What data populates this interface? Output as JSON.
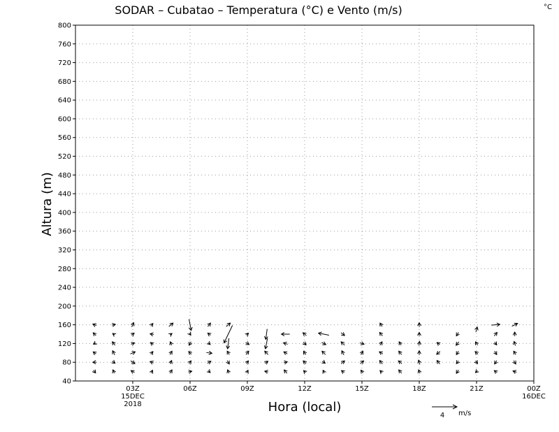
{
  "chart_data": {
    "type": "vector-field",
    "title": "SODAR – Cubatao – Temperatura (°C) e Vento (m/s)",
    "corner_unit": "°C",
    "xlabel": "Hora (local)",
    "ylabel": "Altura (m)",
    "xlim": [
      0,
      24
    ],
    "ylim": [
      40,
      800
    ],
    "y_ticks": [
      40,
      80,
      120,
      160,
      200,
      240,
      280,
      320,
      360,
      400,
      440,
      480,
      520,
      560,
      600,
      640,
      680,
      720,
      760,
      800
    ],
    "x_ticks": [
      {
        "hour": 3,
        "label": "03Z",
        "sub1": "15DEC",
        "sub2": "2018"
      },
      {
        "hour": 6,
        "label": "06Z",
        "sub1": "",
        "sub2": ""
      },
      {
        "hour": 9,
        "label": "09Z",
        "sub1": "",
        "sub2": ""
      },
      {
        "hour": 12,
        "label": "12Z",
        "sub1": "",
        "sub2": ""
      },
      {
        "hour": 15,
        "label": "15Z",
        "sub1": "",
        "sub2": ""
      },
      {
        "hour": 18,
        "label": "18Z",
        "sub1": "",
        "sub2": ""
      },
      {
        "hour": 21,
        "label": "21Z",
        "sub1": "",
        "sub2": ""
      },
      {
        "hour": 24,
        "label": "00Z",
        "sub1": "16DEC",
        "sub2": ""
      }
    ],
    "grid": true,
    "reference_vector": {
      "speed": 4,
      "label": "4",
      "unit": "m/s"
    },
    "wind_vectors": [
      {
        "hour": 1,
        "height": 160,
        "u": -0.5,
        "v": 0.2
      },
      {
        "hour": 1,
        "height": 140,
        "u": -0.4,
        "v": 0.4
      },
      {
        "hour": 1,
        "height": 120,
        "u": -0.3,
        "v": -0.2
      },
      {
        "hour": 1,
        "height": 100,
        "u": -0.4,
        "v": 0.3
      },
      {
        "hour": 1,
        "height": 80,
        "u": -0.5,
        "v": 0.0
      },
      {
        "hour": 1,
        "height": 60,
        "u": 0.3,
        "v": -0.4
      },
      {
        "hour": 2,
        "height": 160,
        "u": 0.5,
        "v": 0.1
      },
      {
        "hour": 2,
        "height": 140,
        "u": -0.3,
        "v": 0.2
      },
      {
        "hour": 2,
        "height": 120,
        "u": -0.4,
        "v": 0.5
      },
      {
        "hour": 2,
        "height": 100,
        "u": -0.3,
        "v": 0.6
      },
      {
        "hour": 2,
        "height": 80,
        "u": 0.4,
        "v": -0.3
      },
      {
        "hour": 2,
        "height": 60,
        "u": -0.2,
        "v": 0.5
      },
      {
        "hour": 3,
        "height": 160,
        "u": 0.3,
        "v": 0.6
      },
      {
        "hour": 3,
        "height": 140,
        "u": 0.4,
        "v": 0.3
      },
      {
        "hour": 3,
        "height": 120,
        "u": 0.5,
        "v": 0.2
      },
      {
        "hour": 3,
        "height": 100,
        "u": 0.7,
        "v": 0.3
      },
      {
        "hour": 3,
        "height": 80,
        "u": 0.6,
        "v": -0.4
      },
      {
        "hour": 3,
        "height": 60,
        "u": -0.5,
        "v": 0.3
      },
      {
        "hour": 4,
        "height": 160,
        "u": 0.3,
        "v": 0.4
      },
      {
        "hour": 4,
        "height": 140,
        "u": -0.5,
        "v": 0.1
      },
      {
        "hour": 4,
        "height": 120,
        "u": -0.4,
        "v": 0.3
      },
      {
        "hour": 4,
        "height": 100,
        "u": 0.3,
        "v": 0.4
      },
      {
        "hour": 4,
        "height": 80,
        "u": -0.5,
        "v": 0.2
      },
      {
        "hour": 4,
        "height": 60,
        "u": 0.2,
        "v": 0.4
      },
      {
        "hour": 5,
        "height": 160,
        "u": 0.6,
        "v": 0.5
      },
      {
        "hour": 5,
        "height": 140,
        "u": 0.3,
        "v": 0.2
      },
      {
        "hour": 5,
        "height": 120,
        "u": -0.2,
        "v": 0.5
      },
      {
        "hour": 5,
        "height": 100,
        "u": 0.3,
        "v": 0.5
      },
      {
        "hour": 5,
        "height": 80,
        "u": 0.2,
        "v": 0.5
      },
      {
        "hour": 5,
        "height": 60,
        "u": 0.3,
        "v": 0.5
      },
      {
        "hour": 6,
        "height": 160,
        "u": 0.3,
        "v": -1.6
      },
      {
        "hour": 6,
        "height": 140,
        "u": 0.2,
        "v": -0.3
      },
      {
        "hour": 6,
        "height": 120,
        "u": -0.3,
        "v": -0.5
      },
      {
        "hour": 6,
        "height": 100,
        "u": -0.4,
        "v": 0.4
      },
      {
        "hour": 6,
        "height": 80,
        "u": 0.3,
        "v": 0.4
      },
      {
        "hour": 6,
        "height": 60,
        "u": 0.5,
        "v": 0.1
      },
      {
        "hour": 7,
        "height": 160,
        "u": 0.4,
        "v": 0.5
      },
      {
        "hour": 7,
        "height": 140,
        "u": -0.4,
        "v": 0.3
      },
      {
        "hour": 7,
        "height": 120,
        "u": 0.3,
        "v": -0.3
      },
      {
        "hour": 7,
        "height": 100,
        "u": 0.8,
        "v": -0.1
      },
      {
        "hour": 7,
        "height": 80,
        "u": 0.5,
        "v": 0.3
      },
      {
        "hour": 7,
        "height": 60,
        "u": 0.3,
        "v": -0.3
      },
      {
        "hour": 8,
        "height": 160,
        "u": 0.6,
        "v": 0.5
      },
      {
        "hour": 8,
        "height": 140,
        "u": -1.2,
        "v": -2.5
      },
      {
        "hour": 8,
        "height": 120,
        "u": -0.2,
        "v": -1.5
      },
      {
        "hour": 8,
        "height": 100,
        "u": -0.3,
        "v": 0.5
      },
      {
        "hour": 8,
        "height": 80,
        "u": 0.3,
        "v": -0.5
      },
      {
        "hour": 8,
        "height": 60,
        "u": -0.2,
        "v": 0.5
      },
      {
        "hour": 9,
        "height": 140,
        "u": 0.3,
        "v": 0.3
      },
      {
        "hour": 9,
        "height": 120,
        "u": 0.5,
        "v": -0.3
      },
      {
        "hour": 9,
        "height": 100,
        "u": 0.4,
        "v": 0.5
      },
      {
        "hour": 9,
        "height": 80,
        "u": 0.3,
        "v": 0.4
      },
      {
        "hour": 9,
        "height": 60,
        "u": 0.2,
        "v": 0.4
      },
      {
        "hour": 10,
        "height": 140,
        "u": -0.2,
        "v": -1.5
      },
      {
        "hour": 10,
        "height": 120,
        "u": -0.3,
        "v": -1.5
      },
      {
        "hour": 10,
        "height": 100,
        "u": -0.5,
        "v": 0.5
      },
      {
        "hour": 10,
        "height": 80,
        "u": 0.4,
        "v": 0.3
      },
      {
        "hour": 10,
        "height": 60,
        "u": -0.5,
        "v": 0.1
      },
      {
        "hour": 11,
        "height": 140,
        "u": -1.2,
        "v": 0.0
      },
      {
        "hour": 11,
        "height": 120,
        "u": -0.6,
        "v": 0.2
      },
      {
        "hour": 11,
        "height": 100,
        "u": -0.5,
        "v": 0.3
      },
      {
        "hour": 11,
        "height": 80,
        "u": 0.5,
        "v": 0.1
      },
      {
        "hour": 11,
        "height": 60,
        "u": -0.4,
        "v": 0.5
      },
      {
        "hour": 12,
        "height": 140,
        "u": -0.5,
        "v": 0.4
      },
      {
        "hour": 12,
        "height": 120,
        "u": 0.4,
        "v": -0.4
      },
      {
        "hour": 12,
        "height": 100,
        "u": -0.3,
        "v": 0.5
      },
      {
        "hour": 12,
        "height": 80,
        "u": -0.4,
        "v": 0.4
      },
      {
        "hour": 12,
        "height": 60,
        "u": -0.3,
        "v": 0.3
      },
      {
        "hour": 13,
        "height": 140,
        "u": -1.5,
        "v": 0.3
      },
      {
        "hour": 13,
        "height": 120,
        "u": 0.6,
        "v": -0.3
      },
      {
        "hour": 13,
        "height": 100,
        "u": -0.5,
        "v": 0.5
      },
      {
        "hour": 13,
        "height": 80,
        "u": 0.4,
        "v": -0.3
      },
      {
        "hour": 13,
        "height": 60,
        "u": -0.2,
        "v": 0.4
      },
      {
        "hour": 14,
        "height": 140,
        "u": 0.5,
        "v": -0.4
      },
      {
        "hour": 14,
        "height": 120,
        "u": -0.5,
        "v": 0.5
      },
      {
        "hour": 14,
        "height": 100,
        "u": -0.3,
        "v": 0.6
      },
      {
        "hour": 14,
        "height": 80,
        "u": 0.5,
        "v": 0.4
      },
      {
        "hour": 14,
        "height": 60,
        "u": -0.4,
        "v": 0.3
      },
      {
        "hour": 15,
        "height": 120,
        "u": 0.6,
        "v": -0.2
      },
      {
        "hour": 15,
        "height": 100,
        "u": 0.3,
        "v": 0.5
      },
      {
        "hour": 15,
        "height": 80,
        "u": 0.5,
        "v": 0.4
      },
      {
        "hour": 15,
        "height": 60,
        "u": -0.3,
        "v": 0.4
      },
      {
        "hour": 16,
        "height": 160,
        "u": -0.3,
        "v": 0.5
      },
      {
        "hour": 16,
        "height": 140,
        "u": -0.4,
        "v": 0.5
      },
      {
        "hour": 16,
        "height": 120,
        "u": 0.3,
        "v": 0.5
      },
      {
        "hour": 16,
        "height": 100,
        "u": -0.5,
        "v": 0.3
      },
      {
        "hour": 16,
        "height": 80,
        "u": -0.4,
        "v": 0.5
      },
      {
        "hour": 16,
        "height": 60,
        "u": -0.3,
        "v": 0.3
      },
      {
        "hour": 17,
        "height": 120,
        "u": -0.3,
        "v": 0.5
      },
      {
        "hour": 17,
        "height": 100,
        "u": -0.4,
        "v": 0.5
      },
      {
        "hour": 17,
        "height": 80,
        "u": -0.5,
        "v": 0.4
      },
      {
        "hour": 17,
        "height": 60,
        "u": -0.4,
        "v": 0.5
      },
      {
        "hour": 18,
        "height": 160,
        "u": 0.0,
        "v": 0.6
      },
      {
        "hour": 18,
        "height": 140,
        "u": 0.0,
        "v": 0.5
      },
      {
        "hour": 18,
        "height": 120,
        "u": 0.1,
        "v": 0.6
      },
      {
        "hour": 18,
        "height": 100,
        "u": 0.0,
        "v": 0.6
      },
      {
        "hour": 18,
        "height": 80,
        "u": -0.2,
        "v": 0.6
      },
      {
        "hour": 18,
        "height": 60,
        "u": -0.2,
        "v": 0.5
      },
      {
        "hour": 19,
        "height": 120,
        "u": -0.4,
        "v": 0.3
      },
      {
        "hour": 19,
        "height": 100,
        "u": -0.5,
        "v": -0.4
      },
      {
        "hour": 19,
        "height": 80,
        "u": -0.4,
        "v": 0.5
      },
      {
        "hour": 20,
        "height": 140,
        "u": -0.3,
        "v": -0.5
      },
      {
        "hour": 20,
        "height": 120,
        "u": -0.4,
        "v": -0.5
      },
      {
        "hour": 20,
        "height": 100,
        "u": -0.3,
        "v": -0.5
      },
      {
        "hour": 20,
        "height": 80,
        "u": -0.3,
        "v": -0.4
      },
      {
        "hour": 20,
        "height": 60,
        "u": -0.3,
        "v": -0.5
      },
      {
        "hour": 21,
        "height": 150,
        "u": 0.2,
        "v": 0.7
      },
      {
        "hour": 21,
        "height": 120,
        "u": -0.3,
        "v": 0.5
      },
      {
        "hour": 21,
        "height": 100,
        "u": -0.4,
        "v": 0.4
      },
      {
        "hour": 21,
        "height": 80,
        "u": 0.3,
        "v": -0.4
      },
      {
        "hour": 21,
        "height": 60,
        "u": -0.3,
        "v": -0.3
      },
      {
        "hour": 22,
        "height": 160,
        "u": 1.2,
        "v": 0.1
      },
      {
        "hour": 22,
        "height": 140,
        "u": 0.4,
        "v": 0.5
      },
      {
        "hour": 22,
        "height": 120,
        "u": 0.3,
        "v": -0.4
      },
      {
        "hour": 22,
        "height": 100,
        "u": 0.3,
        "v": -0.5
      },
      {
        "hour": 22,
        "height": 80,
        "u": -0.3,
        "v": -0.5
      },
      {
        "hour": 22,
        "height": 60,
        "u": -0.4,
        "v": 0.3
      },
      {
        "hour": 23,
        "height": 160,
        "u": 0.8,
        "v": 0.4
      },
      {
        "hour": 23,
        "height": 140,
        "u": 0.0,
        "v": 0.6
      },
      {
        "hour": 23,
        "height": 120,
        "u": -0.2,
        "v": 0.6
      },
      {
        "hour": 23,
        "height": 100,
        "u": -0.3,
        "v": 0.5
      },
      {
        "hour": 23,
        "height": 80,
        "u": 0.3,
        "v": -0.5
      },
      {
        "hour": 23,
        "height": 60,
        "u": -0.5,
        "v": 0.2
      }
    ]
  }
}
